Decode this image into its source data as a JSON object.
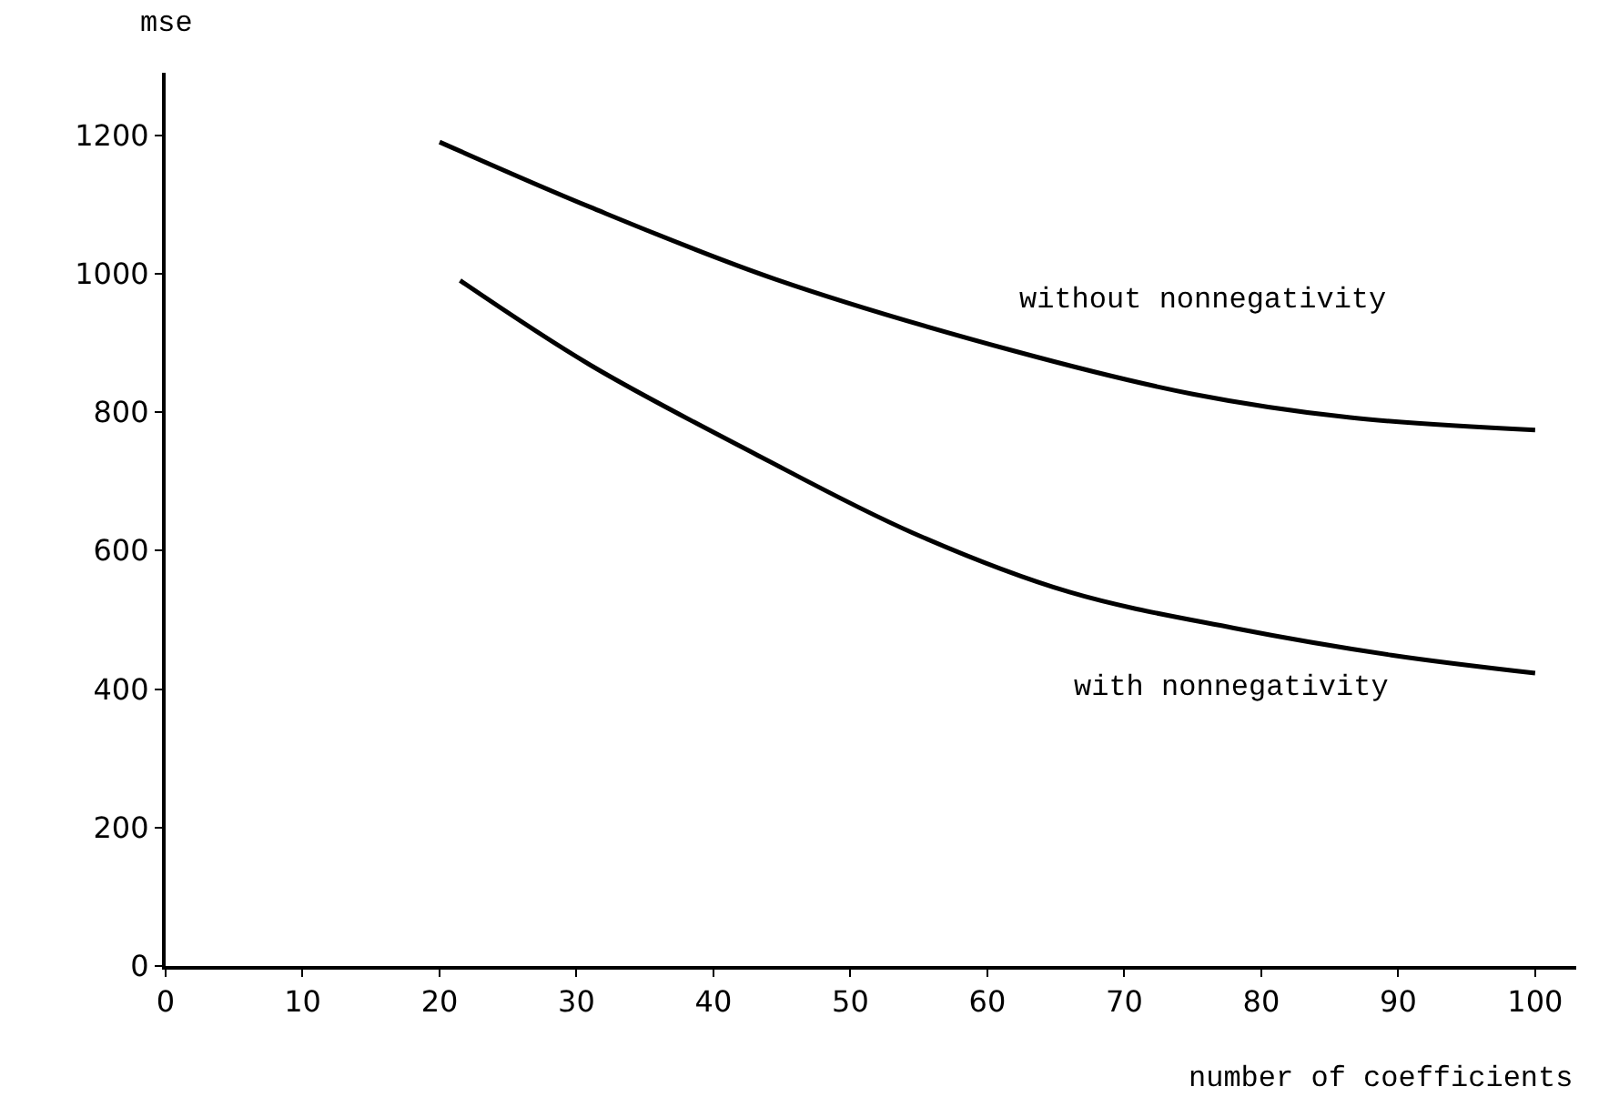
{
  "chart_data": {
    "type": "line",
    "xlabel": "number of coefficients",
    "ylabel": "mse",
    "xlim": [
      0,
      103
    ],
    "ylim": [
      0,
      1290
    ],
    "xticks": [
      0,
      10,
      20,
      30,
      40,
      50,
      60,
      70,
      80,
      90,
      100
    ],
    "yticks": [
      0,
      200,
      400,
      600,
      800,
      1000,
      1200
    ],
    "legend": false,
    "marker": "none",
    "line_style": "solid",
    "series": [
      {
        "name": "without nonnegativity",
        "color": "#000000",
        "x": [
          20,
          31,
          44.5,
          62,
          75,
          86.5,
          100
        ],
        "values": [
          1190,
          1096,
          992,
          888,
          826,
          792,
          774
        ]
      },
      {
        "name": "with nonnegativity",
        "color": "#000000",
        "x": [
          21.5,
          31,
          43,
          54.5,
          66,
          78,
          89.5,
          100
        ],
        "values": [
          990,
          868,
          740,
          626,
          540,
          488,
          449,
          423
        ]
      }
    ]
  }
}
